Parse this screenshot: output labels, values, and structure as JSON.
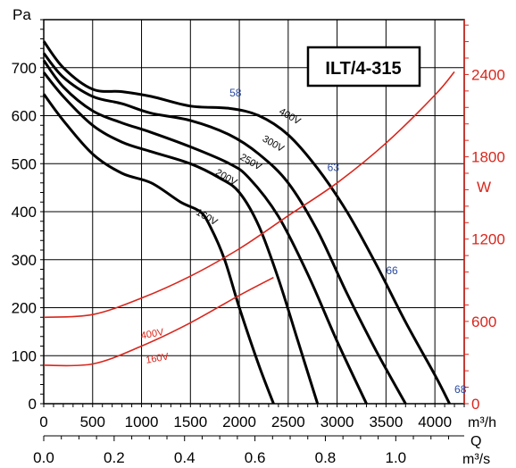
{
  "chart_data": {
    "type": "line",
    "title": "ILT/4-315",
    "y_left": {
      "label": "Pa",
      "range": [
        0,
        800
      ],
      "ticks": [
        0,
        100,
        200,
        300,
        400,
        500,
        600,
        700
      ],
      "color": "#000000"
    },
    "y_right": {
      "label": "W",
      "range": [
        0,
        2800
      ],
      "ticks": [
        0,
        600,
        1200,
        1800,
        2400
      ],
      "ticks_shown": [
        "0",
        "600",
        "1200",
        "1800",
        "2400"
      ],
      "color": "#d9261c"
    },
    "x_bottom_1": {
      "label": "m³/h",
      "range": [
        0,
        4300
      ],
      "ticks": [
        0,
        500,
        1000,
        1500,
        2000,
        2500,
        3000,
        3500,
        4000
      ]
    },
    "x_bottom_2": {
      "label": "m³/s",
      "quantity_label": "Q",
      "ticks": [
        "0.0",
        "0.2",
        "0.4",
        "0.6",
        "0.8",
        "1.0"
      ],
      "tick_values": [
        0.0,
        0.2,
        0.4,
        0.6,
        0.8,
        1.0
      ]
    },
    "pressure_series": [
      {
        "name": "160V",
        "color": "#000000",
        "x": [
          0,
          200,
          500,
          800,
          1100,
          1400,
          1600,
          1700,
          1850,
          2000,
          2200,
          2350
        ],
        "y": [
          645,
          590,
          520,
          480,
          460,
          420,
          400,
          370,
          300,
          200,
          80,
          0
        ]
      },
      {
        "name": "200V",
        "color": "#000000",
        "x": [
          0,
          200,
          500,
          800,
          1100,
          1500,
          1800,
          2000,
          2200,
          2400,
          2600,
          2800
        ],
        "y": [
          690,
          640,
          580,
          545,
          525,
          500,
          470,
          440,
          370,
          260,
          130,
          0
        ]
      },
      {
        "name": "250V",
        "color": "#000000",
        "x": [
          0,
          200,
          500,
          800,
          1100,
          1500,
          1900,
          2100,
          2400,
          2700,
          3000,
          3300
        ],
        "y": [
          715,
          660,
          610,
          585,
          565,
          535,
          500,
          470,
          390,
          270,
          130,
          0
        ]
      },
      {
        "name": "300V",
        "color": "#000000",
        "x": [
          0,
          200,
          500,
          800,
          1100,
          1500,
          1900,
          2200,
          2500,
          2800,
          3100,
          3400,
          3700
        ],
        "y": [
          730,
          680,
          640,
          625,
          605,
          590,
          560,
          520,
          460,
          360,
          230,
          110,
          0
        ]
      },
      {
        "name": "400V",
        "color": "#000000",
        "x": [
          0,
          200,
          500,
          800,
          1100,
          1500,
          1900,
          2200,
          2500,
          2800,
          3100,
          3400,
          3700,
          4000,
          4150
        ],
        "y": [
          755,
          700,
          655,
          650,
          640,
          620,
          615,
          600,
          560,
          490,
          400,
          290,
          170,
          60,
          0
        ]
      }
    ],
    "power_series": [
      {
        "name": "400V",
        "color": "#d9261c",
        "x": [
          0,
          500,
          1000,
          1500,
          2000,
          2500,
          3000,
          3500,
          4000,
          4200
        ],
        "y": [
          630,
          650,
          770,
          930,
          1130,
          1370,
          1610,
          1900,
          2250,
          2420
        ]
      },
      {
        "name": "160V",
        "color": "#d9261c",
        "x": [
          0,
          500,
          1000,
          1500,
          2000,
          2350
        ],
        "y": [
          280,
          290,
          420,
          590,
          790,
          920
        ]
      }
    ],
    "curve_labels": [
      {
        "text": "160V",
        "x": 1550,
        "y": 395
      },
      {
        "text": "200V",
        "x": 1750,
        "y": 478
      },
      {
        "text": "250V",
        "x": 2000,
        "y": 510
      },
      {
        "text": "300V",
        "x": 2230,
        "y": 548
      },
      {
        "text": "400V",
        "x": 2400,
        "y": 605
      }
    ],
    "power_labels": [
      {
        "text": "400V",
        "x": 1000,
        "y": 135
      },
      {
        "text": "160V",
        "x": 1050,
        "y": 84
      }
    ],
    "noise_labels": [
      {
        "text": "58",
        "x": 1900,
        "y": 640
      },
      {
        "text": "63",
        "x": 2900,
        "y": 485
      },
      {
        "text": "66",
        "x": 3500,
        "y": 270
      },
      {
        "text": "68",
        "x": 4200,
        "y": 22
      }
    ],
    "grid": true
  }
}
